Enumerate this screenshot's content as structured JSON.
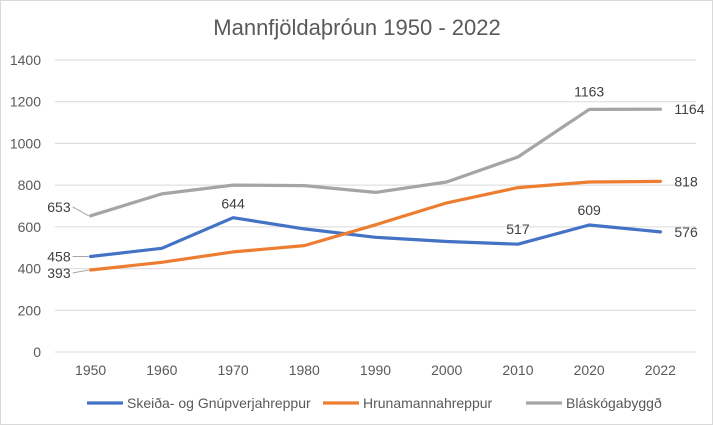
{
  "chart_data": {
    "type": "line",
    "title": "Mannfjöldaþróun 1950 - 2022",
    "xlabel": "",
    "ylabel": "",
    "categories": [
      "1950",
      "1960",
      "1970",
      "1980",
      "1990",
      "2000",
      "2010",
      "2020",
      "2022"
    ],
    "ylim": [
      0,
      1400
    ],
    "yticks": [
      0,
      200,
      400,
      600,
      800,
      1000,
      1200,
      1400
    ],
    "grid": "horizontal",
    "legend_position": "bottom",
    "series": [
      {
        "name": "Skeiða- og Gnúpverjahreppur",
        "color": "#4472C4",
        "values": [
          458,
          497,
          644,
          590,
          550,
          530,
          517,
          609,
          576
        ],
        "labels": {
          "0": "458",
          "2": "644",
          "6": "517",
          "7": "609",
          "8": "576"
        }
      },
      {
        "name": "Hrunamannahreppur",
        "color": "#ED7D31",
        "values": [
          393,
          430,
          480,
          510,
          610,
          715,
          788,
          815,
          818
        ],
        "labels": {
          "0": "393",
          "8": "818"
        }
      },
      {
        "name": "Bláskógabyggð",
        "color": "#A5A5A5",
        "values": [
          653,
          758,
          800,
          798,
          765,
          815,
          935,
          1163,
          1164
        ],
        "labels": {
          "0": "653",
          "7": "1163",
          "8": "1164"
        }
      }
    ]
  }
}
